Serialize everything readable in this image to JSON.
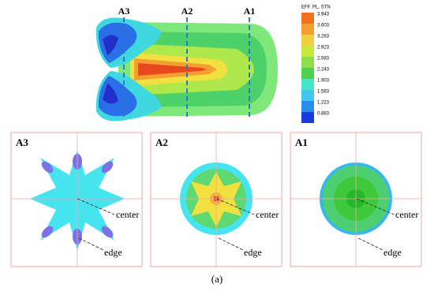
{
  "figure": {
    "section_labels": [
      "A3",
      "A2",
      "A1"
    ],
    "legend": {
      "title": "EFF. PL. STN",
      "values": [
        "3.943",
        "3.603",
        "3.263",
        "2.923",
        "2.583",
        "2.243",
        "1.903",
        "1.563",
        "1.223",
        "0.883"
      ]
    },
    "panels": [
      {
        "label": "A3",
        "center": "center",
        "edge": "edge"
      },
      {
        "label": "A2",
        "center": "center",
        "edge": "edge"
      },
      {
        "label": "A1",
        "center": "center",
        "edge": "edge"
      }
    ],
    "caption": "(a)"
  }
}
